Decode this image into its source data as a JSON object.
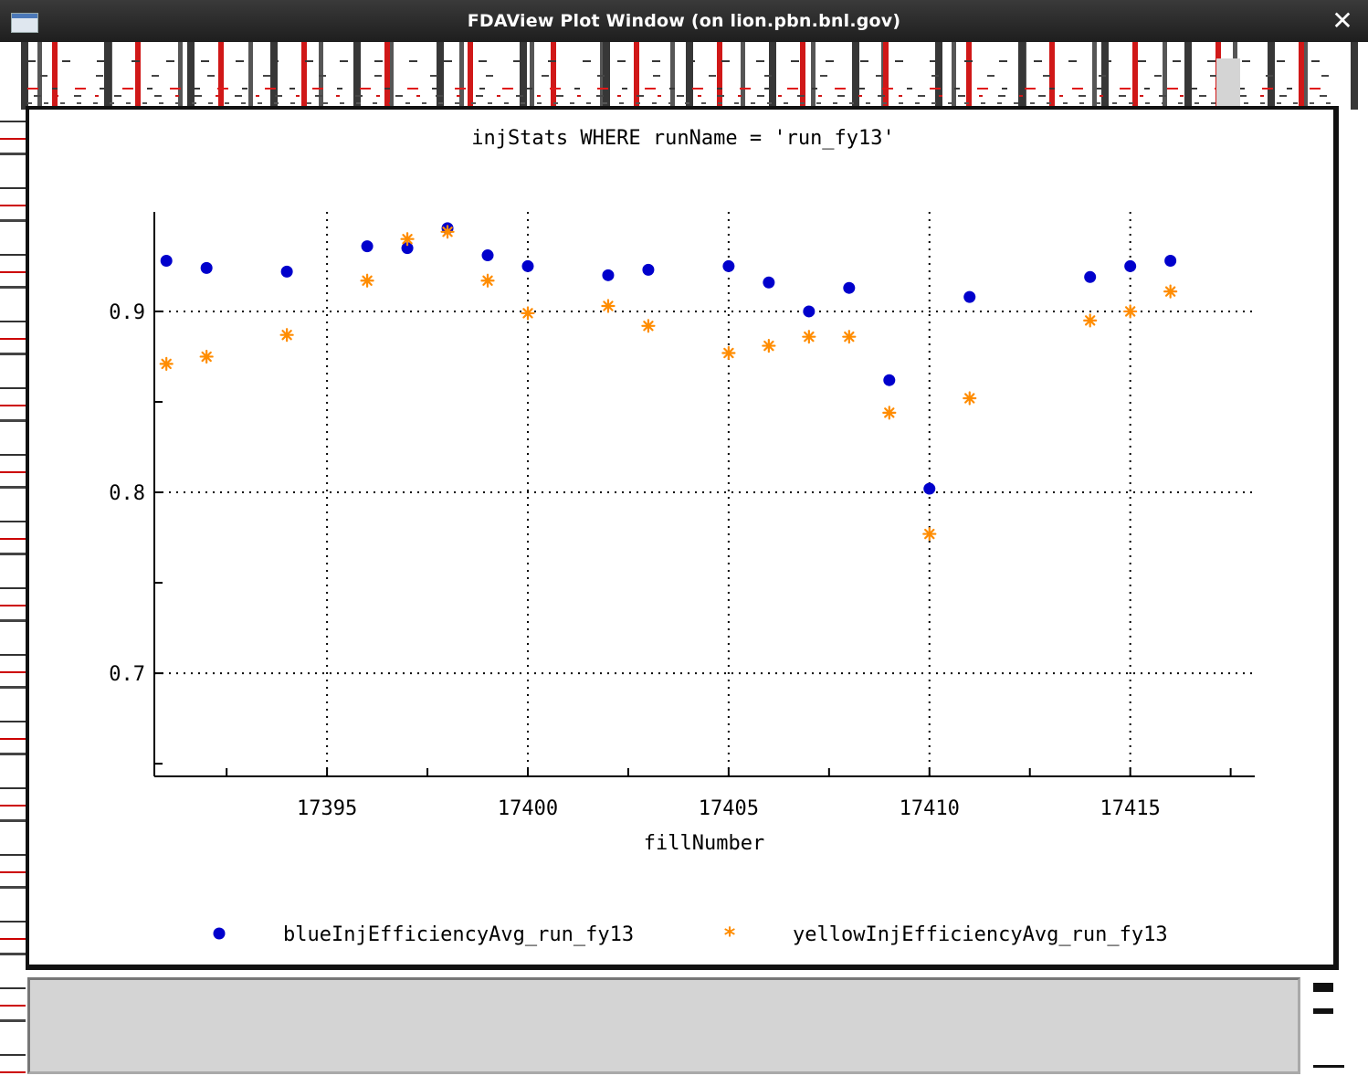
{
  "window": {
    "title": "FDAView Plot Window (on lion.pbn.bnl.gov)",
    "close_glyph": "✕"
  },
  "colors": {
    "blue_series": "#0000cc",
    "yellow_series": "#ff8c00",
    "grid": "#000000",
    "bottom_panel": "#d4d4d4"
  },
  "chart_data": {
    "type": "scatter",
    "title": "injStats WHERE runName = 'run_fy13'",
    "xlabel": "fillNumber",
    "ylabel": "",
    "xlim": [
      17390.7,
      17418.1
    ],
    "ylim": [
      0.643,
      0.955
    ],
    "x_ticks": [
      17395,
      17400,
      17405,
      17410,
      17415
    ],
    "x_minor_ticks": [
      17392.5,
      17397.5,
      17402.5,
      17407.5,
      17412.5,
      17417.5
    ],
    "y_ticks": [
      0.7,
      0.8,
      0.9
    ],
    "y_minor_ticks": [
      0.65,
      0.75,
      0.85
    ],
    "grid": true,
    "legend_position": "bottom",
    "series": [
      {
        "name": "blueInjEfficiencyAvg_run_fy13",
        "marker": "circle",
        "points": [
          [
            17391,
            0.928
          ],
          [
            17392,
            0.924
          ],
          [
            17394,
            0.922
          ],
          [
            17396,
            0.936
          ],
          [
            17397,
            0.935
          ],
          [
            17398,
            0.946
          ],
          [
            17399,
            0.931
          ],
          [
            17400,
            0.925
          ],
          [
            17402,
            0.92
          ],
          [
            17403,
            0.923
          ],
          [
            17405,
            0.925
          ],
          [
            17406,
            0.916
          ],
          [
            17407,
            0.9
          ],
          [
            17408,
            0.913
          ],
          [
            17409,
            0.862
          ],
          [
            17410,
            0.802
          ],
          [
            17411,
            0.908
          ],
          [
            17414,
            0.919
          ],
          [
            17415,
            0.925
          ],
          [
            17416,
            0.928
          ]
        ]
      },
      {
        "name": "yellowInjEfficiencyAvg_run_fy13",
        "marker": "asterisk",
        "points": [
          [
            17391,
            0.871
          ],
          [
            17392,
            0.875
          ],
          [
            17394,
            0.887
          ],
          [
            17396,
            0.917
          ],
          [
            17397,
            0.94
          ],
          [
            17398,
            0.944
          ],
          [
            17399,
            0.917
          ],
          [
            17400,
            0.899
          ],
          [
            17402,
            0.903
          ],
          [
            17403,
            0.892
          ],
          [
            17405,
            0.877
          ],
          [
            17406,
            0.881
          ],
          [
            17407,
            0.886
          ],
          [
            17408,
            0.886
          ],
          [
            17409,
            0.844
          ],
          [
            17410,
            0.777
          ],
          [
            17411,
            0.852
          ],
          [
            17414,
            0.895
          ],
          [
            17415,
            0.9
          ],
          [
            17416,
            0.911
          ]
        ]
      }
    ]
  }
}
